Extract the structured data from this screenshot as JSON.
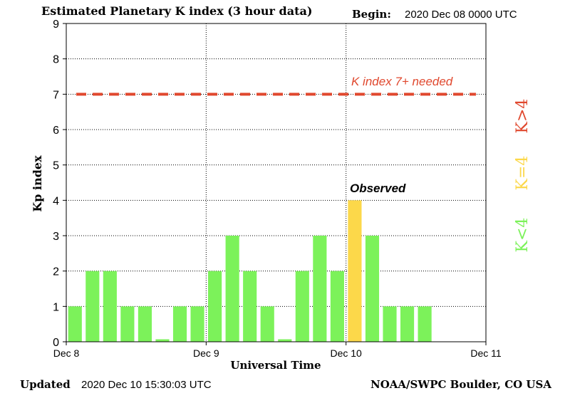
{
  "header": {
    "title": "Estimated Planetary K index (3 hour data)",
    "begin_label": "Begin:",
    "begin_value": "2020 Dec 08 0000 UTC"
  },
  "footer": {
    "updated_label": "Updated",
    "updated_value": "2020 Dec 10 15:30:03 UTC",
    "credit": "NOAA/SWPC Boulder, CO USA"
  },
  "chart_data": {
    "type": "bar",
    "title": "Estimated Planetary K index (3 hour data)",
    "xlabel": "Universal Time",
    "ylabel": "Kp index",
    "ylim": [
      0,
      9
    ],
    "yticks": [
      0,
      1,
      2,
      3,
      4,
      5,
      6,
      7,
      8,
      9
    ],
    "xlim": [
      "2020-12-08 00:00",
      "2020-12-11 00:00"
    ],
    "xticks": [
      "Dec 8",
      "Dec 9",
      "Dec 10",
      "Dec 11"
    ],
    "interval_hours": 3,
    "grid": true,
    "values": [
      1,
      2,
      2,
      1,
      1,
      0.07,
      1,
      1,
      2,
      3,
      2,
      1,
      0.07,
      2,
      3,
      2,
      4,
      3,
      1,
      1,
      1
    ],
    "threshold": {
      "value": 7,
      "label": "K index 7+ needed",
      "color": "#e0482e"
    },
    "annotation": {
      "text": "Observed",
      "bar_index": 16
    },
    "colors": {
      "low": "#7cf25a",
      "mid": "#fcd84a",
      "high": "#e0482e"
    },
    "legend": {
      "placement": "right",
      "items": [
        {
          "label": "K<4",
          "color": "#7cf25a"
        },
        {
          "label": "K=4",
          "color": "#fcd84a"
        },
        {
          "label": "K>4",
          "color": "#e0482e"
        }
      ]
    }
  }
}
